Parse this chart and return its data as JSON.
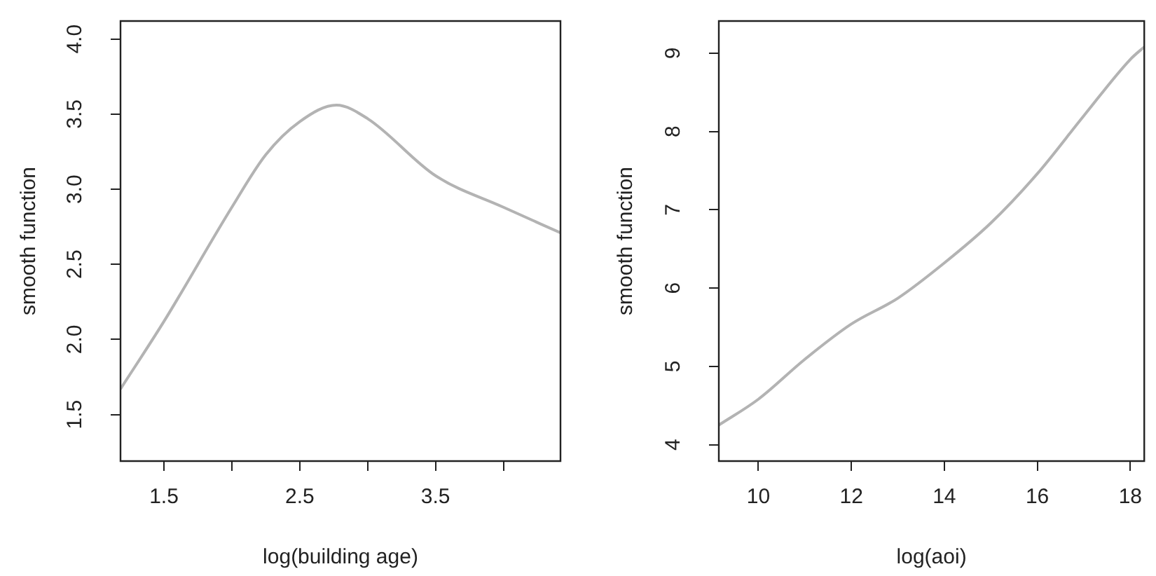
{
  "chart_data": [
    {
      "type": "line",
      "xlabel": "log(building age)",
      "ylabel": "smooth function",
      "x": [
        1.18,
        1.5,
        2.0,
        2.25,
        2.5,
        2.77,
        3.0,
        3.5,
        4.0,
        4.42
      ],
      "series": [
        {
          "color": "#b3b3b3",
          "values": [
            1.67,
            2.12,
            2.88,
            3.23,
            3.45,
            3.56,
            3.47,
            3.09,
            2.88,
            2.71
          ]
        }
      ],
      "xlim": [
        1.18,
        4.42
      ],
      "ylim": [
        1.19,
        4.12
      ],
      "xticks": [
        1.5,
        {
          "value": 2.0,
          "label": null
        },
        2.5,
        {
          "value": 3.0,
          "label": null
        },
        3.5,
        {
          "value": 4.0,
          "label": null
        }
      ],
      "yticks": [
        1.5,
        {
          "value": 2,
          "label": "2.0"
        },
        2.5,
        {
          "value": 3,
          "label": "3.0"
        },
        3.5,
        {
          "value": 4,
          "label": "4.0"
        }
      ]
    },
    {
      "type": "line",
      "xlabel": "log(aoi)",
      "ylabel": "smooth function",
      "x": [
        9.15,
        10,
        11,
        12,
        13,
        14,
        15,
        16,
        17,
        18,
        18.3
      ],
      "series": [
        {
          "color": "#b3b3b3",
          "values": [
            4.25,
            4.58,
            5.09,
            5.54,
            5.87,
            6.32,
            6.83,
            7.46,
            8.2,
            8.92,
            9.08
          ]
        }
      ],
      "xlim": [
        9.15,
        18.3
      ],
      "ylim": [
        3.79,
        9.41
      ],
      "xticks": [
        10,
        12,
        14,
        16,
        18
      ],
      "yticks": [
        4,
        5,
        6,
        7,
        8,
        9
      ]
    }
  ]
}
